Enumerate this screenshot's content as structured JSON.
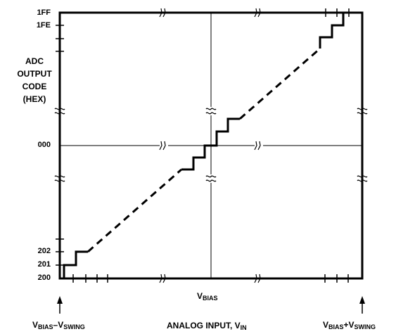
{
  "chart_data": {
    "type": "line",
    "y_axis_title_lines": [
      "ADC",
      "OUTPUT",
      "CODE",
      "(HEX)"
    ],
    "y_tick_labels": [
      "1FF",
      "1FE",
      "000",
      "202",
      "201",
      "200"
    ],
    "x_axis_title": {
      "main": "ANALOG INPUT, V",
      "sub": "IN"
    },
    "x_center_label": {
      "main": "V",
      "sub": "BIAS"
    },
    "x_left_label": {
      "v": "V",
      "s1": "BIAS",
      "minus": "–V",
      "s2": "SWING"
    },
    "x_right_label": {
      "v": "V",
      "s1": "BIAS",
      "plus": "+V",
      "s2": "SWING"
    },
    "segments": [
      {
        "name": "low-codes",
        "style": "solid",
        "steps": [
          "200",
          "201",
          "202"
        ]
      },
      {
        "name": "low-ramp",
        "style": "dashed"
      },
      {
        "name": "center-codes",
        "style": "solid",
        "steps": [
          "1FE",
          "1FF",
          "000",
          "001",
          "002"
        ]
      },
      {
        "name": "high-ramp",
        "style": "dashed"
      },
      {
        "name": "high-codes",
        "style": "solid",
        "steps": [
          "1FE",
          "1FF"
        ]
      }
    ],
    "grid": "center-cross",
    "axis_breaks": true
  }
}
